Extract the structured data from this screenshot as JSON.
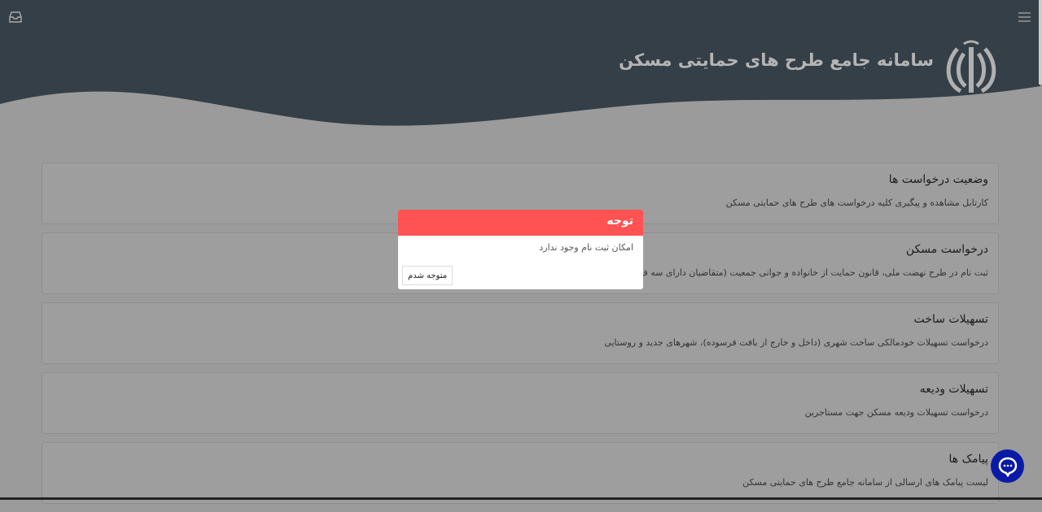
{
  "header": {
    "title": "سامانه جامع طرح های حمایتی مسکن",
    "emblem": "Iran emblem"
  },
  "icons": {
    "inbox": "inbox-icon",
    "menu": "hamburger-menu-icon",
    "chat": "chat-bubble-icon"
  },
  "cards": [
    {
      "title": "وضعیت درخواست ها",
      "desc": "کارتابل مشاهده و پیگیری کلیه درخواست های طرح های حمایتی مسکن"
    },
    {
      "title": "درخواست مسکن",
      "desc": "ثبت نام در طرح نهضت ملی، قانون حمایت از خانواده و جوانی جمعیت (متقاضیان دارای سه فرزند یا"
    },
    {
      "title": "تسهیلات ساخت",
      "desc": "درخواست تسهیلات خودمالکی ساخت شهری (داخل و خارج از بافت فرسوده)، شهرهای جدید و روستایی"
    },
    {
      "title": "تسهیلات ودیعه",
      "desc": "درخواست تسهیلات ودیعه مسکن جهت مستاجرین"
    },
    {
      "title": "پیامک ها",
      "desc": "لیست پیامک های ارسالی از سامانه جامع طرح های حمایتی مسکن"
    }
  ],
  "modal": {
    "title": "توجه",
    "message": "امکان ثبت نام وجود ندارد",
    "ok_label": "متوجه شدم"
  },
  "colors": {
    "header": "#353f47",
    "modal_header": "#ff5252",
    "chat": "#0b1aa6"
  }
}
